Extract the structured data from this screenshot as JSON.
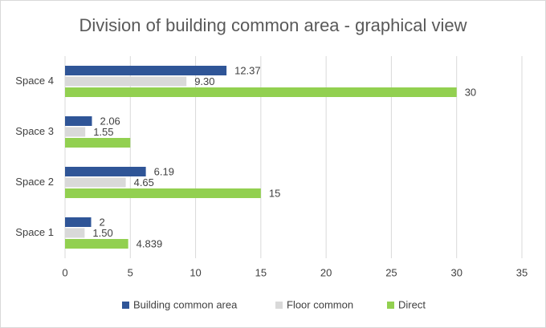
{
  "chart_data": {
    "type": "hbar",
    "title": "Division of building common area - graphical view",
    "categories": [
      "Space 1",
      "Space 2",
      "Space 3",
      "Space 4"
    ],
    "series": [
      {
        "name": "Building common area",
        "color": "#2f5597",
        "values": [
          2,
          6.19,
          2.06,
          12.37
        ]
      },
      {
        "name": "Floor common",
        "color": "#d9d9d9",
        "values": [
          1.5,
          4.65,
          1.55,
          9.3
        ],
        "value_labels": [
          "1.50",
          "4.65",
          "1.55",
          "9.30"
        ]
      },
      {
        "name": "Direct",
        "color": "#92d050",
        "values": [
          4.839,
          15,
          5,
          30
        ],
        "value_labels": [
          "4.839",
          "15",
          null,
          "30"
        ]
      }
    ],
    "xlim": [
      0,
      35
    ],
    "xticks": [
      0,
      5,
      10,
      15,
      20,
      25,
      30,
      35
    ],
    "grid": true,
    "legend": "bottom"
  }
}
